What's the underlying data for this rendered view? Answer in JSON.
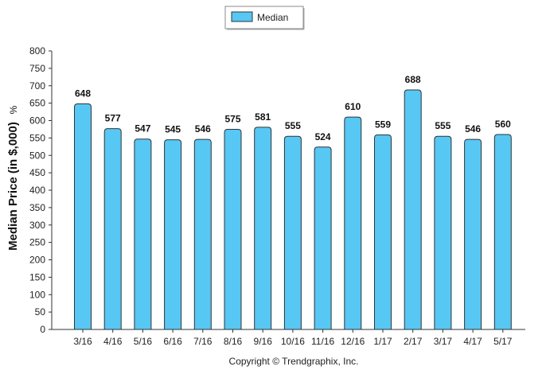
{
  "legend": {
    "label": "Median"
  },
  "copyright": "Copyright © Trendgraphix, Inc.",
  "colors": {
    "bar_fill": "#57c7f4",
    "bar_stroke": "#333333",
    "axis": "#333333"
  },
  "chart_data": {
    "type": "bar",
    "title": "",
    "xlabel": "",
    "ylabel": "Median Price (in $,000)",
    "ylabel_unit": "%",
    "ylim": [
      0,
      800
    ],
    "yticks": [
      0,
      50,
      100,
      150,
      200,
      250,
      300,
      350,
      400,
      450,
      500,
      550,
      600,
      650,
      700,
      750,
      800
    ],
    "grid": false,
    "legend_position": "top-center",
    "categories": [
      "3/16",
      "4/16",
      "5/16",
      "6/16",
      "7/16",
      "8/16",
      "9/16",
      "10/16",
      "11/16",
      "12/16",
      "1/17",
      "2/17",
      "3/17",
      "4/17",
      "5/17"
    ],
    "series": [
      {
        "name": "Median",
        "values": [
          648,
          577,
          547,
          545,
          546,
          575,
          581,
          555,
          524,
          610,
          559,
          688,
          555,
          546,
          560
        ]
      }
    ]
  }
}
